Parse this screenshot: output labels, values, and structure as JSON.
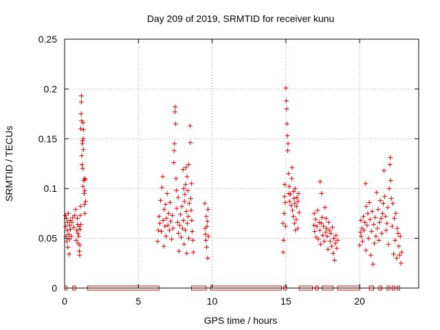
{
  "chart_data": {
    "type": "scatter",
    "title": "Day 209 of 2019, SRMTID for receiver kunu",
    "xlabel": "GPS time / hours",
    "ylabel": "SRMTID / TECUs",
    "xlim": [
      0,
      24
    ],
    "ylim": [
      0,
      0.25
    ],
    "xticks": [
      0,
      5,
      10,
      15,
      20
    ],
    "yticks": [
      0,
      0.05,
      0.1,
      0.15,
      0.2,
      0.25
    ],
    "xtick_labels": [
      "0",
      "5",
      "10",
      "15",
      "20"
    ],
    "ytick_labels": [
      "0",
      "0.05",
      "0.1",
      "0.15",
      "0.2",
      "0.25"
    ],
    "grid": true,
    "legend": "none",
    "marker": "+",
    "color": "#dd0000",
    "series": [
      {
        "name": "SRMTID",
        "points": [
          [
            0.05,
            0.073
          ],
          [
            0.08,
            0.062
          ],
          [
            0.1,
            0.052
          ],
          [
            0.12,
            0.07
          ],
          [
            0.15,
            0.047
          ],
          [
            0.18,
            0.058
          ],
          [
            0.2,
            0.066
          ],
          [
            0.22,
            0.041
          ],
          [
            0.25,
            0.075
          ],
          [
            0.28,
            0.054
          ],
          [
            0.3,
            0.034
          ],
          [
            0.33,
            0.049
          ],
          [
            0.35,
            0.063
          ],
          [
            0.38,
            0.068
          ],
          [
            0.4,
            0.059
          ],
          [
            0.45,
            0.052
          ],
          [
            0.5,
            0.066
          ],
          [
            0.55,
            0.071
          ],
          [
            0.62,
            0.061
          ],
          [
            0.68,
            0.073
          ],
          [
            0.75,
            0.079
          ],
          [
            0.78,
            0.048
          ],
          [
            0.82,
            0.058
          ],
          [
            0.86,
            0.07
          ],
          [
            0.88,
            0.064
          ],
          [
            0.9,
            0.055
          ],
          [
            0.92,
            0.045
          ],
          [
            0.95,
            0.052
          ],
          [
            0.98,
            0.062
          ],
          [
            1.0,
            0.037
          ],
          [
            1.02,
            0.033
          ],
          [
            1.03,
            0.043
          ],
          [
            1.05,
            0.059
          ],
          [
            1.06,
            0.073
          ],
          [
            1.08,
            0.082
          ],
          [
            1.1,
            0.064
          ],
          [
            1.1,
            0.16
          ],
          [
            1.12,
            0.175
          ],
          [
            1.13,
            0.187
          ],
          [
            1.14,
            0.193
          ],
          [
            1.15,
            0.168
          ],
          [
            1.16,
            0.133
          ],
          [
            1.18,
            0.124
          ],
          [
            1.2,
            0.145
          ],
          [
            1.22,
            0.148
          ],
          [
            1.23,
            0.12
          ],
          [
            1.24,
            0.102
          ],
          [
            1.25,
            0.166
          ],
          [
            1.26,
            0.15
          ],
          [
            1.27,
            0.139
          ],
          [
            1.28,
            0.159
          ],
          [
            1.3,
            0.108
          ],
          [
            1.32,
            0.095
          ],
          [
            1.34,
            0.084
          ],
          [
            1.35,
            0.11
          ],
          [
            1.37,
            0.098
          ],
          [
            1.38,
            0.075
          ],
          [
            1.4,
            0.109
          ],
          [
            1.42,
            0.087
          ],
          [
            6.3,
            0.047
          ],
          [
            6.35,
            0.058
          ],
          [
            6.4,
            0.072
          ],
          [
            6.45,
            0.065
          ],
          [
            6.5,
            0.088
          ],
          [
            6.55,
            0.057
          ],
          [
            6.6,
            0.101
          ],
          [
            6.65,
            0.112
          ],
          [
            6.68,
            0.068
          ],
          [
            6.72,
            0.042
          ],
          [
            6.75,
            0.079
          ],
          [
            6.8,
            0.062
          ],
          [
            6.85,
            0.084
          ],
          [
            6.88,
            0.052
          ],
          [
            6.9,
            0.07
          ],
          [
            6.95,
            0.095
          ],
          [
            7.0,
            0.063
          ],
          [
            7.05,
            0.075
          ],
          [
            7.1,
            0.058
          ],
          [
            7.15,
            0.086
          ],
          [
            7.2,
            0.067
          ],
          [
            7.25,
            0.049
          ],
          [
            7.3,
            0.073
          ],
          [
            7.35,
            0.06
          ],
          [
            7.4,
            0.126
          ],
          [
            7.42,
            0.138
          ],
          [
            7.45,
            0.145
          ],
          [
            7.48,
            0.177
          ],
          [
            7.5,
            0.182
          ],
          [
            7.52,
            0.165
          ],
          [
            7.55,
            0.11
          ],
          [
            7.58,
            0.098
          ],
          [
            7.6,
            0.08
          ],
          [
            7.65,
            0.066
          ],
          [
            7.7,
            0.091
          ],
          [
            7.72,
            0.055
          ],
          [
            7.75,
            0.037
          ],
          [
            7.8,
            0.063
          ],
          [
            7.85,
            0.074
          ],
          [
            7.9,
            0.051
          ],
          [
            7.95,
            0.082
          ],
          [
            8.0,
            0.06
          ],
          [
            8.02,
            0.119
          ],
          [
            8.05,
            0.068
          ],
          [
            8.08,
            0.1
          ],
          [
            8.1,
            0.044
          ],
          [
            8.12,
            0.087
          ],
          [
            8.15,
            0.094
          ],
          [
            8.18,
            0.058
          ],
          [
            8.2,
            0.104
          ],
          [
            8.22,
            0.121
          ],
          [
            8.25,
            0.077
          ],
          [
            8.28,
            0.035
          ],
          [
            8.3,
            0.112
          ],
          [
            8.32,
            0.065
          ],
          [
            8.35,
            0.098
          ],
          [
            8.38,
            0.072
          ],
          [
            8.4,
            0.124
          ],
          [
            8.42,
            0.05
          ],
          [
            8.45,
            0.085
          ],
          [
            8.5,
            0.163
          ],
          [
            8.52,
            0.146
          ],
          [
            8.55,
            0.09
          ],
          [
            8.58,
            0.078
          ],
          [
            8.6,
            0.105
          ],
          [
            8.62,
            0.068
          ],
          [
            8.65,
            0.057
          ],
          [
            8.7,
            0.048
          ],
          [
            8.72,
            0.036
          ],
          [
            9.5,
            0.085
          ],
          [
            9.52,
            0.06
          ],
          [
            9.55,
            0.054
          ],
          [
            9.58,
            0.048
          ],
          [
            9.6,
            0.072
          ],
          [
            9.62,
            0.041
          ],
          [
            9.65,
            0.062
          ],
          [
            9.68,
            0.067
          ],
          [
            9.7,
            0.03
          ],
          [
            9.72,
            0.079
          ],
          [
            9.75,
            0.052
          ],
          [
            14.8,
            0.065
          ],
          [
            14.82,
            0.036
          ],
          [
            14.85,
            0.048
          ],
          [
            14.88,
            0.075
          ],
          [
            14.9,
            0.092
          ],
          [
            14.92,
            0.104
          ],
          [
            14.95,
            0.086
          ],
          [
            14.98,
            0.062
          ],
          [
            15.0,
            0.201
          ],
          [
            15.02,
            0.188
          ],
          [
            15.05,
            0.18
          ],
          [
            15.07,
            0.165
          ],
          [
            15.1,
            0.153
          ],
          [
            15.12,
            0.138
          ],
          [
            15.15,
            0.145
          ],
          [
            15.18,
            0.115
          ],
          [
            15.2,
            0.095
          ],
          [
            15.22,
            0.102
          ],
          [
            15.25,
            0.087
          ],
          [
            15.3,
            0.094
          ],
          [
            15.35,
            0.083
          ],
          [
            15.4,
            0.11
          ],
          [
            15.42,
            0.121
          ],
          [
            15.45,
            0.078
          ],
          [
            15.5,
            0.072
          ],
          [
            15.52,
            0.097
          ],
          [
            15.55,
            0.09
          ],
          [
            15.58,
            0.065
          ],
          [
            15.6,
            0.085
          ],
          [
            15.62,
            0.1
          ],
          [
            15.65,
            0.058
          ],
          [
            15.7,
            0.069
          ],
          [
            15.72,
            0.082
          ],
          [
            15.75,
            0.091
          ],
          [
            15.8,
            0.06
          ],
          [
            15.82,
            0.087
          ],
          [
            15.85,
            0.095
          ],
          [
            15.9,
            0.076
          ],
          [
            16.9,
            0.063
          ],
          [
            16.92,
            0.075
          ],
          [
            16.95,
            0.057
          ],
          [
            17.0,
            0.069
          ],
          [
            17.05,
            0.051
          ],
          [
            17.1,
            0.062
          ],
          [
            17.15,
            0.078
          ],
          [
            17.2,
            0.049
          ],
          [
            17.25,
            0.066
          ],
          [
            17.3,
            0.058
          ],
          [
            17.32,
            0.107
          ],
          [
            17.35,
            0.044
          ],
          [
            17.4,
            0.065
          ],
          [
            17.42,
            0.095
          ],
          [
            17.45,
            0.071
          ],
          [
            17.5,
            0.053
          ],
          [
            17.55,
            0.062
          ],
          [
            17.6,
            0.047
          ],
          [
            17.65,
            0.081
          ],
          [
            17.7,
            0.056
          ],
          [
            17.72,
            0.07
          ],
          [
            17.75,
            0.06
          ],
          [
            17.8,
            0.052
          ],
          [
            17.85,
            0.039
          ],
          [
            17.9,
            0.066
          ],
          [
            17.95,
            0.058
          ],
          [
            18.0,
            0.047
          ],
          [
            18.05,
            0.055
          ],
          [
            18.1,
            0.042
          ],
          [
            18.15,
            0.061
          ],
          [
            18.2,
            0.035
          ],
          [
            18.25,
            0.05
          ],
          [
            18.3,
            0.028
          ],
          [
            18.35,
            0.045
          ],
          [
            18.4,
            0.053
          ],
          [
            18.45,
            0.04
          ],
          [
            18.5,
            0.048
          ],
          [
            20.0,
            0.043
          ],
          [
            20.05,
            0.056
          ],
          [
            20.08,
            0.068
          ],
          [
            20.1,
            0.052
          ],
          [
            20.15,
            0.06
          ],
          [
            20.2,
            0.047
          ],
          [
            20.25,
            0.072
          ],
          [
            20.3,
            0.058
          ],
          [
            20.35,
            0.066
          ],
          [
            20.4,
            0.105
          ],
          [
            20.42,
            0.038
          ],
          [
            20.45,
            0.082
          ],
          [
            20.5,
            0.063
          ],
          [
            20.55,
            0.075
          ],
          [
            20.6,
            0.05
          ],
          [
            20.65,
            0.086
          ],
          [
            20.7,
            0.069
          ],
          [
            20.75,
            0.033
          ],
          [
            20.8,
            0.057
          ],
          [
            20.85,
            0.077
          ],
          [
            20.9,
            0.024
          ],
          [
            20.95,
            0.064
          ],
          [
            21.0,
            0.045
          ],
          [
            21.05,
            0.071
          ],
          [
            21.1,
            0.052
          ],
          [
            21.15,
            0.096
          ],
          [
            21.2,
            0.06
          ],
          [
            21.25,
            0.079
          ],
          [
            21.3,
            0.048
          ],
          [
            21.35,
            0.066
          ],
          [
            21.4,
            0.088
          ],
          [
            21.45,
            0.07
          ],
          [
            21.5,
            0.055
          ],
          [
            21.55,
            0.075
          ],
          [
            21.6,
            0.085
          ],
          [
            21.65,
            0.118
          ],
          [
            21.7,
            0.092
          ],
          [
            21.75,
            0.072
          ],
          [
            21.8,
            0.058
          ],
          [
            21.85,
            0.065
          ],
          [
            21.9,
            0.081
          ],
          [
            21.95,
            0.044
          ],
          [
            22.0,
            0.1
          ],
          [
            22.05,
            0.124
          ],
          [
            22.08,
            0.131
          ],
          [
            22.1,
            0.108
          ],
          [
            22.15,
            0.09
          ],
          [
            22.2,
            0.062
          ],
          [
            22.25,
            0.085
          ],
          [
            22.3,
            0.034
          ],
          [
            22.35,
            0.07
          ],
          [
            22.4,
            0.048
          ],
          [
            22.45,
            0.075
          ],
          [
            22.5,
            0.03
          ],
          [
            22.55,
            0.06
          ],
          [
            22.6,
            0.055
          ],
          [
            22.65,
            0.042
          ],
          [
            22.7,
            0.033
          ],
          [
            22.75,
            0.052
          ],
          [
            22.8,
            0.025
          ],
          [
            22.85,
            0.036
          ]
        ]
      }
    ],
    "zero_intervals": [
      [
        0,
        0.15
      ],
      [
        0.55,
        0.75
      ],
      [
        1.55,
        6.4
      ],
      [
        8.6,
        9.6
      ],
      [
        9.9,
        14.7
      ],
      [
        14.85,
        15.05
      ],
      [
        15.9,
        16.8
      ],
      [
        17.0,
        17.2
      ],
      [
        17.45,
        18.2
      ],
      [
        18.5,
        20.0
      ],
      [
        20.65,
        20.95
      ],
      [
        21.3,
        21.5
      ],
      [
        21.85,
        22.05
      ],
      [
        22.2,
        22.4
      ],
      [
        22.55,
        22.7
      ]
    ]
  }
}
